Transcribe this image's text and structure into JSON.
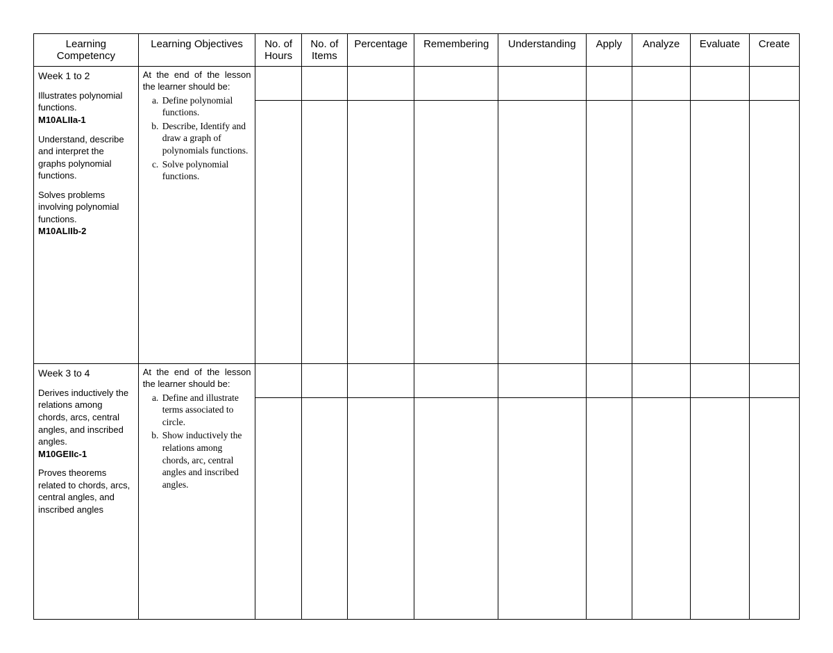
{
  "headers": {
    "competency": "Learning Competency",
    "objectives": "Learning Objectives",
    "hours": "No. of Hours",
    "items": "No. of Items",
    "percentage": "Percentag​e",
    "remembering": "Rememberin​g",
    "understanding": "Understandin​g",
    "apply": "Apply",
    "analyze": "Analyze",
    "evaluate": "Evaluate",
    "create": "Create"
  },
  "rows": [
    {
      "week": "Week 1 to 2",
      "competencies": [
        {
          "text": "Illustrates polynomial functions.",
          "code": "M10ALIIa-1"
        },
        {
          "text": "Understand, describe and interpret the graphs polynomial functions.",
          "code": ""
        },
        {
          "text": "Solves problems involving polynomial functions.",
          "code": "M10ALIIb-2"
        }
      ],
      "objectives_intro": "At the end of the lesson the learner should be:",
      "objectives": [
        "Define polynomial functions.",
        "Describe, Identify and draw a graph of polynomials functions.",
        "Solve polynomial functions."
      ],
      "min_body_height": 370
    },
    {
      "week": "Week 3 to 4",
      "competencies": [
        {
          "text": "Derives inductively the relations among chords, arcs, central angles, and inscribed angles.",
          "code": "M10GEIIc-1"
        },
        {
          "text": "Proves theorems related to chords, arcs, central angles, and inscribed angles",
          "code": ""
        }
      ],
      "objectives_intro": "At the end of the lesson the learner should be:",
      "objectives": [
        "Define and illustrate terms associated to circle.",
        "Show inductively the relations among chords, arc, central angles and inscribed angles."
      ],
      "min_body_height": 310
    }
  ],
  "style": {
    "border_color": "#000000",
    "background_color": "#ffffff",
    "header_fontsize": 15,
    "body_fontsize": 13,
    "serif_fontsize": 13.5
  }
}
